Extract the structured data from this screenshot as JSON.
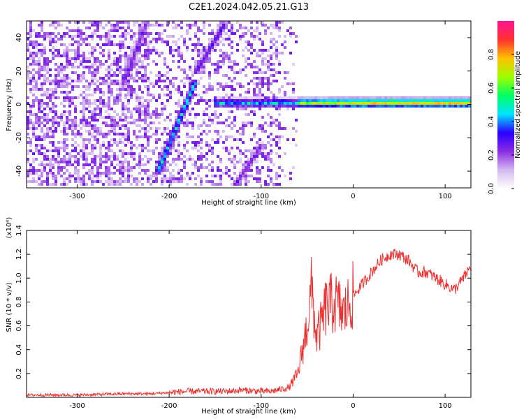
{
  "title": "C2E1.2024.042.05.21.G13",
  "chart_data": [
    {
      "type": "heatmap",
      "xlabel": "Height of straight line (km)",
      "ylabel": "Frequency (Hz)",
      "xlim": [
        -355,
        128
      ],
      "ylim": [
        -50,
        50
      ],
      "xticks": [
        -300,
        -200,
        -100,
        0,
        100
      ],
      "yticks": [
        -40,
        -20,
        0,
        20,
        40
      ],
      "colorbar": {
        "label": "Normalized spectral amplitude",
        "range": [
          0,
          1
        ],
        "ticks": [
          0.0,
          0.2,
          0.4,
          0.6,
          0.8
        ],
        "tick_labels": [
          "0.0",
          "0.2",
          "0.4",
          "0.6",
          "0.8"
        ],
        "colors": [
          "#ffffff",
          "#d4b8f0",
          "#8a2be2",
          "#2a00ff",
          "#00e5ff",
          "#00ff60",
          "#a0ff00",
          "#ffc000",
          "#ff3030",
          "#ff1493"
        ]
      },
      "features": [
        {
          "kind": "diagonal-track",
          "from": [
            -212,
            -40
          ],
          "to": [
            -172,
            13
          ],
          "peak": 0.55
        },
        {
          "kind": "diagonal-track",
          "from": [
            -170,
            20
          ],
          "to": [
            -140,
            48
          ],
          "peak": 0.35
        },
        {
          "kind": "diagonal-track",
          "from": [
            -250,
            12
          ],
          "to": [
            -225,
            48
          ],
          "peak": 0.3
        },
        {
          "kind": "diagonal-track",
          "from": [
            -130,
            -50
          ],
          "to": [
            -100,
            -25
          ],
          "peak": 0.3
        },
        {
          "kind": "horizontal-band",
          "x_range": [
            -150,
            128
          ],
          "y": 0,
          "peak": 0.85
        }
      ]
    },
    {
      "type": "line",
      "xlabel": "Height of straight line (km)",
      "ylabel": "SNR (10 * v/v)",
      "y_multiplier": "(x10⁴)",
      "xlim": [
        -355,
        128
      ],
      "ylim": [
        0,
        1.4
      ],
      "xticks": [
        -300,
        -200,
        -100,
        0,
        100
      ],
      "yticks": [
        0.2,
        0.4,
        0.6,
        0.8,
        1.0,
        1.2,
        1.4
      ],
      "series": [
        {
          "color": "#ee3030",
          "x": [
            -355,
            -300,
            -250,
            -220,
            -200,
            -180,
            -160,
            -140,
            -120,
            -100,
            -90,
            -70,
            -60,
            -55,
            -50,
            -45,
            -40,
            -35,
            -30,
            -20,
            -10,
            0,
            10,
            20,
            30,
            40,
            50,
            60,
            70,
            80,
            90,
            100,
            110,
            120,
            128
          ],
          "y": [
            0.02,
            0.02,
            0.03,
            0.03,
            0.04,
            0.05,
            0.05,
            0.05,
            0.06,
            0.05,
            0.05,
            0.08,
            0.2,
            0.4,
            0.6,
            0.9,
            0.5,
            0.6,
            0.75,
            0.8,
            0.7,
            0.85,
            0.95,
            1.05,
            1.15,
            1.2,
            1.2,
            1.15,
            1.05,
            1.05,
            1.0,
            0.95,
            0.9,
            1.0,
            1.1
          ]
        }
      ]
    }
  ]
}
